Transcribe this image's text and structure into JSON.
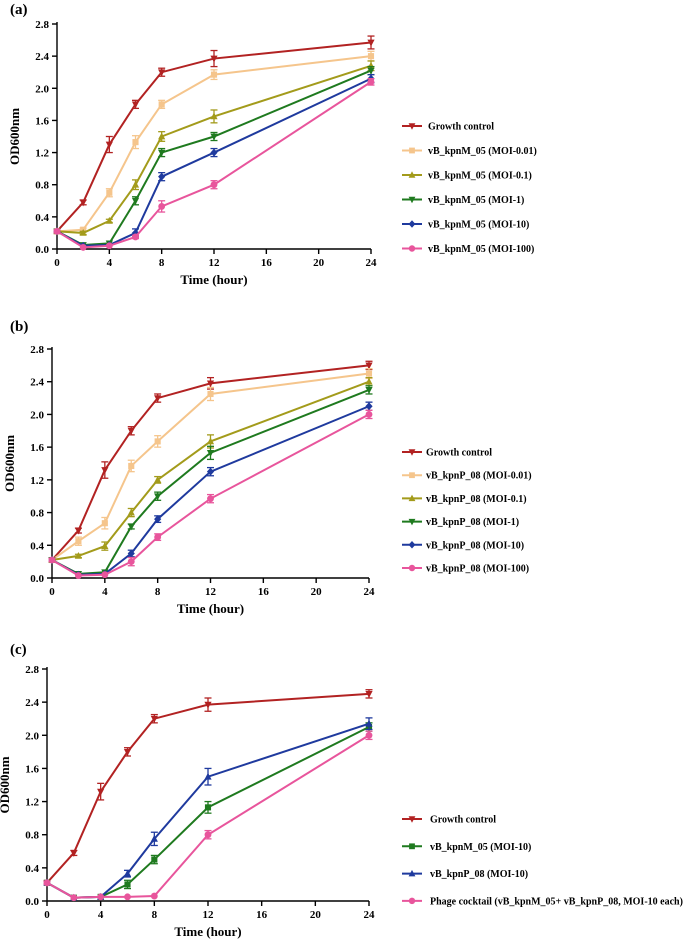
{
  "chart_data": [
    {
      "type": "line",
      "panel_label": "(a)",
      "xlabel": "Time (hour)",
      "ylabel": "OD600nm",
      "x": [
        0,
        2,
        4,
        6,
        8,
        12,
        24
      ],
      "xticks": [
        0,
        4,
        8,
        12,
        16,
        20,
        24
      ],
      "yticks": [
        0.0,
        0.4,
        0.8,
        1.2,
        1.6,
        2.0,
        2.4,
        2.8
      ],
      "ytick_labels": [
        "0.0",
        "0.4",
        "0.8",
        "1.2",
        "1.6",
        "2.0",
        "2.4",
        "2.8"
      ],
      "xlim": [
        0,
        24
      ],
      "ylim": [
        0,
        2.8
      ],
      "legend_position": "right",
      "series": [
        {
          "name": "Growth control",
          "color": "#b22222",
          "marker": "triangle-down",
          "values": [
            0.22,
            0.58,
            1.3,
            1.8,
            2.2,
            2.37,
            2.57
          ],
          "errors": [
            0.02,
            0.03,
            0.1,
            0.05,
            0.05,
            0.1,
            0.08
          ]
        },
        {
          "name": "vB_kpnM_05 (MOI-0.01)",
          "color": "#f5c58c",
          "marker": "square",
          "values": [
            0.22,
            0.24,
            0.7,
            1.33,
            1.8,
            2.17,
            2.4
          ],
          "errors": [
            0.02,
            0.02,
            0.05,
            0.08,
            0.05,
            0.06,
            0.06
          ]
        },
        {
          "name": "vB_kpnM_05 (MOI-0.1)",
          "color": "#a39b1b",
          "marker": "triangle-up",
          "values": [
            0.22,
            0.2,
            0.35,
            0.8,
            1.4,
            1.65,
            2.28
          ],
          "errors": [
            0.02,
            0.02,
            0.02,
            0.06,
            0.06,
            0.08,
            0.06
          ]
        },
        {
          "name": "vB_kpnM_05 (MOI-1)",
          "color": "#1f7a1f",
          "marker": "triangle-down",
          "values": [
            0.22,
            0.05,
            0.07,
            0.6,
            1.2,
            1.4,
            2.22
          ],
          "errors": [
            0.02,
            0.01,
            0.01,
            0.05,
            0.05,
            0.05,
            0.05
          ]
        },
        {
          "name": "vB_kpnM_05 (MOI-10)",
          "color": "#1f3a9e",
          "marker": "diamond",
          "values": [
            0.22,
            0.04,
            0.05,
            0.2,
            0.9,
            1.2,
            2.12
          ],
          "errors": [
            0.02,
            0.01,
            0.01,
            0.05,
            0.05,
            0.05,
            0.05
          ]
        },
        {
          "name": "vB_kpnM_05 (MOI-100)",
          "color": "#e8559c",
          "marker": "circle",
          "values": [
            0.22,
            0.02,
            0.04,
            0.15,
            0.53,
            0.8,
            2.08
          ],
          "errors": [
            0.02,
            0.01,
            0.01,
            0.02,
            0.07,
            0.05,
            0.04
          ]
        }
      ]
    },
    {
      "type": "line",
      "panel_label": "(b)",
      "xlabel": "Time (hour)",
      "ylabel": "OD600nm",
      "x": [
        0,
        2,
        4,
        6,
        8,
        12,
        24
      ],
      "xticks": [
        0,
        4,
        8,
        12,
        16,
        20,
        24
      ],
      "yticks": [
        0.0,
        0.4,
        0.8,
        1.2,
        1.6,
        2.0,
        2.4,
        2.8
      ],
      "ytick_labels": [
        "0.0",
        "0.4",
        "0.8",
        "1.2",
        "1.6",
        "2.0",
        "2.4",
        "2.8"
      ],
      "xlim": [
        0,
        24
      ],
      "ylim": [
        0,
        2.8
      ],
      "legend_position": "right",
      "series": [
        {
          "name": "Growth control",
          "color": "#b22222",
          "marker": "triangle-down",
          "values": [
            0.22,
            0.58,
            1.32,
            1.8,
            2.2,
            2.38,
            2.6
          ],
          "errors": [
            0.02,
            0.03,
            0.1,
            0.05,
            0.05,
            0.07,
            0.05
          ]
        },
        {
          "name": "vB_kpnP_08 (MOI-0.01)",
          "color": "#f5c58c",
          "marker": "square",
          "values": [
            0.22,
            0.45,
            0.67,
            1.37,
            1.67,
            2.25,
            2.5
          ],
          "errors": [
            0.02,
            0.05,
            0.07,
            0.07,
            0.07,
            0.08,
            0.06
          ]
        },
        {
          "name": "vB_kpnP_08 (MOI-0.1)",
          "color": "#a39b1b",
          "marker": "triangle-up",
          "values": [
            0.22,
            0.27,
            0.39,
            0.8,
            1.2,
            1.67,
            2.4
          ],
          "errors": [
            0.02,
            0.02,
            0.05,
            0.05,
            0.04,
            0.08,
            0.05
          ]
        },
        {
          "name": "vB_kpnP_08 (MOI-1)",
          "color": "#1f7a1f",
          "marker": "triangle-down",
          "values": [
            0.22,
            0.05,
            0.07,
            0.63,
            1.0,
            1.53,
            2.3
          ],
          "errors": [
            0.02,
            0.01,
            0.01,
            0.03,
            0.05,
            0.08,
            0.05
          ]
        },
        {
          "name": "vB_kpnP_08 (MOI-10)",
          "color": "#1f3a9e",
          "marker": "diamond",
          "values": [
            0.22,
            0.04,
            0.05,
            0.3,
            0.72,
            1.3,
            2.1
          ],
          "errors": [
            0.02,
            0.01,
            0.01,
            0.04,
            0.04,
            0.05,
            0.05
          ]
        },
        {
          "name": "vB_kpnP_08 (MOI-100)",
          "color": "#e8559c",
          "marker": "circle",
          "values": [
            0.22,
            0.03,
            0.04,
            0.2,
            0.5,
            0.97,
            2.0
          ],
          "errors": [
            0.02,
            0.01,
            0.01,
            0.05,
            0.04,
            0.05,
            0.05
          ]
        }
      ]
    },
    {
      "type": "line",
      "panel_label": "(c)",
      "xlabel": "Time (hour)",
      "ylabel": "OD600nm",
      "x": [
        0,
        2,
        4,
        6,
        8,
        12,
        24
      ],
      "xticks": [
        0,
        4,
        8,
        12,
        16,
        20,
        24
      ],
      "yticks": [
        0.0,
        0.4,
        0.8,
        1.2,
        1.6,
        2.0,
        2.4,
        2.8
      ],
      "ytick_labels": [
        "0.0",
        "0.4",
        "0.8",
        "1.2",
        "1.6",
        "2.0",
        "2.4",
        "2.8"
      ],
      "xlim": [
        0,
        24
      ],
      "ylim": [
        0,
        2.8
      ],
      "legend_position": "bottom-right",
      "series": [
        {
          "name": "Growth control",
          "color": "#b22222",
          "marker": "triangle-down",
          "values": [
            0.22,
            0.58,
            1.32,
            1.8,
            2.2,
            2.37,
            2.5
          ],
          "errors": [
            0.02,
            0.03,
            0.1,
            0.05,
            0.05,
            0.08,
            0.05
          ]
        },
        {
          "name": "vB_kpnM_05 (MOI-10)",
          "color": "#1f7a1f",
          "marker": "square",
          "values": [
            0.22,
            0.04,
            0.05,
            0.2,
            0.5,
            1.13,
            2.1
          ],
          "errors": [
            0.02,
            0.01,
            0.01,
            0.05,
            0.05,
            0.07,
            0.05
          ]
        },
        {
          "name": "vB_kpnP_08 (MOI-10)",
          "color": "#1f3a9e",
          "marker": "triangle-up",
          "values": [
            0.22,
            0.04,
            0.05,
            0.33,
            0.75,
            1.5,
            2.14
          ],
          "errors": [
            0.02,
            0.01,
            0.01,
            0.04,
            0.08,
            0.1,
            0.07
          ]
        },
        {
          "name": "Phage cocktail (vB_kpnM_05+ vB_kpnP_08, MOI-10 each)",
          "color": "#e8559c",
          "marker": "circle",
          "values": [
            0.22,
            0.04,
            0.05,
            0.05,
            0.06,
            0.8,
            2.0
          ],
          "errors": [
            0.02,
            0.01,
            0.01,
            0.01,
            0.01,
            0.05,
            0.05
          ]
        }
      ]
    }
  ]
}
